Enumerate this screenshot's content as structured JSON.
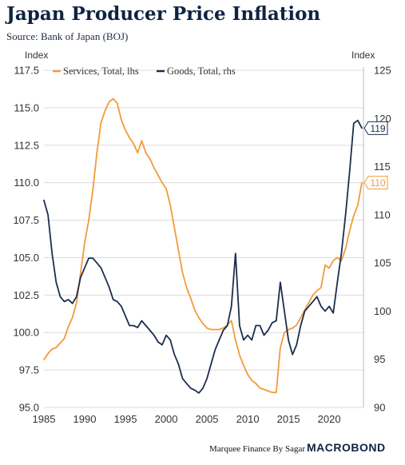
{
  "title": "Japan Producer Price Inflation",
  "subtitle": "Source: Bank of Japan (BOJ)",
  "footer": {
    "credit": "Marquee Finance By Sagar",
    "brand": "MACROBOND"
  },
  "colors": {
    "services": "#f39a3a",
    "goods": "#1a2e4e",
    "grid": "#dcdcdc",
    "text": "#333333"
  },
  "chart_data": {
    "type": "line",
    "title": "Japan Producer Price Inflation",
    "xlabel": "",
    "ylabel_left": "Index",
    "ylabel_right": "Index",
    "xlim": [
      1985,
      2024.2
    ],
    "ylim_left": [
      95,
      117.5
    ],
    "ylim_right": [
      90,
      125
    ],
    "x_ticks": [
      1985,
      1990,
      1995,
      2000,
      2005,
      2010,
      2015,
      2020
    ],
    "y_ticks_left": [
      "95.0",
      "97.5",
      "100.0",
      "102.5",
      "105.0",
      "107.5",
      "110.0",
      "112.5",
      "115.0",
      "117.5"
    ],
    "y_ticks_right": [
      "90",
      "95",
      "100",
      "105",
      "110",
      "115",
      "120",
      "125"
    ],
    "grid": true,
    "legend_position": "top-left",
    "end_labels": {
      "goods": "119",
      "services": "110"
    },
    "series": [
      {
        "name": "Services, Total, lhs",
        "axis": "left",
        "x": [
          1985,
          1985.5,
          1986,
          1986.5,
          1987,
          1987.5,
          1988,
          1988.5,
          1989,
          1989.5,
          1990,
          1990.5,
          1991,
          1991.5,
          1992,
          1992.5,
          1993,
          1993.5,
          1994,
          1994.5,
          1995,
          1995.5,
          1996,
          1996.5,
          1997,
          1997.5,
          1998,
          1998.5,
          1999,
          1999.5,
          2000,
          2000.5,
          2001,
          2001.5,
          2002,
          2002.5,
          2003,
          2003.5,
          2004,
          2004.5,
          2005,
          2005.5,
          2006,
          2006.5,
          2007,
          2007.5,
          2008,
          2008.5,
          2009,
          2009.5,
          2010,
          2010.5,
          2011,
          2011.5,
          2012,
          2012.5,
          2013,
          2013.5,
          2014,
          2014.5,
          2015,
          2015.5,
          2016,
          2016.5,
          2017,
          2017.5,
          2018,
          2018.5,
          2019,
          2019.5,
          2020,
          2020.5,
          2021,
          2021.5,
          2022,
          2022.5,
          2023,
          2023.5,
          2024
        ],
        "values": [
          98.2,
          98.6,
          98.9,
          99.0,
          99.3,
          99.6,
          100.4,
          101.0,
          102.0,
          104.0,
          106.0,
          107.5,
          109.5,
          112.0,
          114.0,
          114.8,
          115.4,
          115.6,
          115.3,
          114.2,
          113.5,
          113.0,
          112.6,
          112.0,
          112.8,
          112.0,
          111.6,
          111.0,
          110.5,
          110.0,
          109.6,
          108.5,
          107.0,
          105.5,
          104.0,
          103.0,
          102.3,
          101.5,
          101.0,
          100.6,
          100.3,
          100.2,
          100.2,
          100.2,
          100.3,
          100.5,
          100.8,
          99.5,
          98.5,
          97.8,
          97.2,
          96.8,
          96.6,
          96.3,
          96.2,
          96.1,
          96.0,
          96.0,
          99.0,
          100.0,
          100.2,
          100.3,
          100.5,
          101.0,
          101.5,
          102.0,
          102.5,
          102.8,
          103.0,
          104.5,
          104.3,
          104.8,
          105.0,
          104.8,
          105.6,
          106.8,
          107.8,
          108.5,
          110.0
        ]
      },
      {
        "name": "Goods, Total, rhs",
        "axis": "right",
        "x": [
          1985,
          1985.5,
          1986,
          1986.5,
          1987,
          1987.5,
          1988,
          1988.5,
          1989,
          1989.5,
          1990,
          1990.5,
          1991,
          1991.5,
          1992,
          1992.5,
          1993,
          1993.5,
          1994,
          1994.5,
          1995,
          1995.5,
          1996,
          1996.5,
          1997,
          1997.5,
          1998,
          1998.5,
          1999,
          1999.5,
          2000,
          2000.5,
          2001,
          2001.5,
          2002,
          2002.5,
          2003,
          2003.5,
          2004,
          2004.5,
          2005,
          2005.5,
          2006,
          2006.5,
          2007,
          2007.5,
          2008,
          2008.5,
          2009,
          2009.5,
          2010,
          2010.5,
          2011,
          2011.5,
          2012,
          2012.5,
          2013,
          2013.5,
          2014,
          2014.5,
          2015,
          2015.5,
          2016,
          2016.5,
          2017,
          2017.5,
          2018,
          2018.5,
          2019,
          2019.5,
          2020,
          2020.5,
          2021,
          2021.5,
          2022,
          2022.5,
          2023,
          2023.5,
          2024
        ],
        "values": [
          111.5,
          110.0,
          106.0,
          103.0,
          101.5,
          101.0,
          101.2,
          100.8,
          101.5,
          103.5,
          104.5,
          105.5,
          105.5,
          105.0,
          104.5,
          103.5,
          102.5,
          101.2,
          101.0,
          100.5,
          99.5,
          98.5,
          98.5,
          98.3,
          99.0,
          98.5,
          98.0,
          97.5,
          96.8,
          96.5,
          97.5,
          97.0,
          95.5,
          94.5,
          93.0,
          92.5,
          92.0,
          91.8,
          91.5,
          92.0,
          93.0,
          94.5,
          96.0,
          97.0,
          98.0,
          98.5,
          100.5,
          106.0,
          98.5,
          97.0,
          97.5,
          97.0,
          98.5,
          98.5,
          97.5,
          98.0,
          98.8,
          99.0,
          103.0,
          100.0,
          97.0,
          95.5,
          96.5,
          98.5,
          100.0,
          100.5,
          101.0,
          101.5,
          100.5,
          100.0,
          100.5,
          99.8,
          103.0,
          106.0,
          110.0,
          114.5,
          119.5,
          119.8,
          119.0
        ]
      }
    ]
  }
}
